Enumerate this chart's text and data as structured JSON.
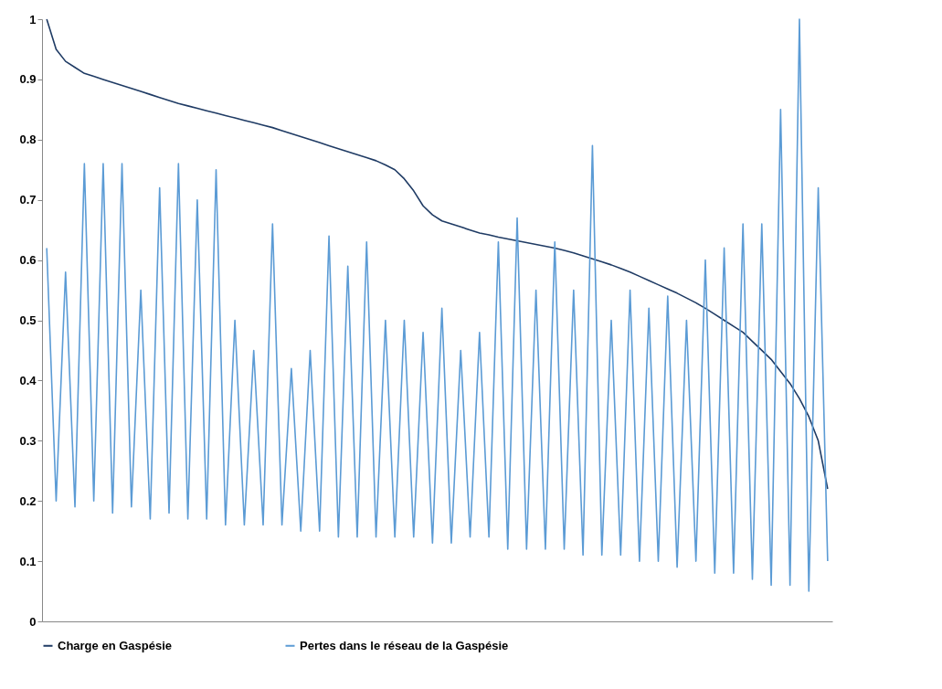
{
  "chart_data": {
    "type": "line",
    "categories": [
      null,
      null,
      null,
      null,
      null,
      null,
      null,
      null,
      null,
      null,
      null,
      null,
      null,
      null,
      null,
      null,
      null,
      null,
      null,
      null,
      null,
      null,
      null,
      null,
      null,
      null,
      null,
      null,
      null,
      null,
      null,
      null,
      null,
      null,
      null,
      null,
      null,
      null,
      null,
      null,
      null,
      null,
      null,
      null,
      null,
      null,
      null,
      null,
      null,
      null,
      null,
      null,
      null,
      null,
      null,
      null,
      null,
      null,
      null,
      null,
      null,
      null,
      null,
      null,
      null,
      null,
      null,
      null,
      null,
      null,
      null,
      null,
      null,
      null,
      null,
      null,
      null,
      null,
      null,
      null,
      null,
      null,
      null,
      null
    ],
    "series": [
      {
        "name": "Charge en Gaspésie",
        "color": "#1f3b64",
        "values": [
          1.0,
          0.95,
          0.93,
          0.92,
          0.91,
          0.905,
          0.9,
          0.895,
          0.89,
          0.885,
          0.88,
          0.875,
          0.87,
          0.865,
          0.86,
          0.856,
          0.852,
          0.848,
          0.844,
          0.84,
          0.836,
          0.832,
          0.828,
          0.824,
          0.82,
          0.815,
          0.81,
          0.805,
          0.8,
          0.795,
          0.79,
          0.785,
          0.78,
          0.775,
          0.77,
          0.765,
          0.758,
          0.75,
          0.735,
          0.715,
          0.69,
          0.675,
          0.665,
          0.66,
          0.655,
          0.65,
          0.645,
          0.642,
          0.638,
          0.635,
          0.632,
          0.629,
          0.626,
          0.623,
          0.62,
          0.616,
          0.612,
          0.607,
          0.602,
          0.597,
          0.592,
          0.586,
          0.58,
          0.573,
          0.566,
          0.559,
          0.552,
          0.545,
          0.537,
          0.529,
          0.52,
          0.51,
          0.5,
          0.49,
          0.48,
          0.465,
          0.45,
          0.435,
          0.415,
          0.395,
          0.37,
          0.34,
          0.3,
          0.22
        ]
      },
      {
        "name": "Pertes dans le réseau de la Gaspésie",
        "color": "#5b9bd5",
        "values": [
          0.62,
          0.2,
          0.58,
          0.19,
          0.76,
          0.2,
          0.76,
          0.18,
          0.76,
          0.19,
          0.55,
          0.17,
          0.72,
          0.18,
          0.76,
          0.17,
          0.7,
          0.17,
          0.75,
          0.16,
          0.5,
          0.16,
          0.45,
          0.16,
          0.66,
          0.16,
          0.42,
          0.15,
          0.45,
          0.15,
          0.64,
          0.14,
          0.59,
          0.14,
          0.63,
          0.14,
          0.5,
          0.14,
          0.5,
          0.14,
          0.48,
          0.13,
          0.52,
          0.13,
          0.45,
          0.14,
          0.48,
          0.14,
          0.63,
          0.12,
          0.67,
          0.12,
          0.55,
          0.12,
          0.63,
          0.12,
          0.55,
          0.11,
          0.79,
          0.11,
          0.5,
          0.11,
          0.55,
          0.1,
          0.52,
          0.1,
          0.54,
          0.09,
          0.5,
          0.1,
          0.6,
          0.08,
          0.62,
          0.08,
          0.66,
          0.07,
          0.66,
          0.06,
          0.85,
          0.06,
          1.0,
          0.05,
          0.72,
          0.1
        ]
      }
    ],
    "ylim": [
      0,
      1
    ],
    "yticks": [
      0,
      0.1,
      0.2,
      0.3,
      0.4,
      0.5,
      0.6,
      0.7,
      0.8,
      0.9,
      1
    ],
    "grid": false,
    "legend": "bottom",
    "marker": "none",
    "line_style": "solid"
  }
}
